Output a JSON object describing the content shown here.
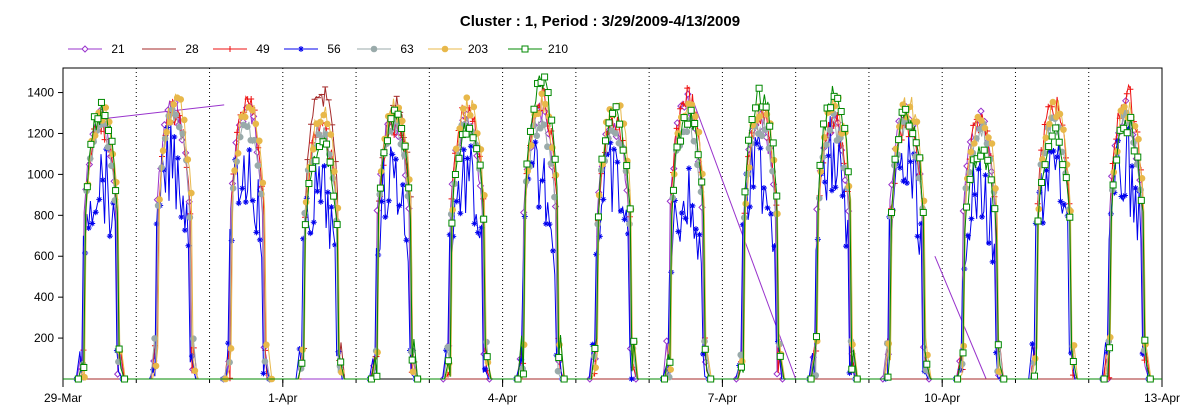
{
  "chart_data": {
    "type": "line",
    "title": "Cluster : 1, Period : 3/29/2009-4/13/2009",
    "xlabel": "",
    "ylabel": "",
    "x_range": [
      "29-Mar",
      "13-Apr"
    ],
    "x_ticks": [
      "29-Mar",
      "1-Apr",
      "4-Apr",
      "7-Apr",
      "10-Apr",
      "13-Apr"
    ],
    "ylim": [
      0,
      1520
    ],
    "y_ticks": [
      200,
      400,
      600,
      800,
      1000,
      1200,
      1400
    ],
    "grid": "vertical dotted at each day",
    "legend_position": "top",
    "series": [
      {
        "name": "21",
        "color": "#9933cc",
        "marker": "diamond",
        "day_peaks": [
          1320,
          1400,
          1380,
          0,
          1330,
          1300,
          1360,
          1320,
          1400,
          1320,
          1320,
          1380,
          1320,
          0,
          1360
        ],
        "extras": [
          {
            "from": [
              0.5,
              1270
            ],
            "to": [
              2.2,
              1340
            ]
          },
          {
            "from": [
              8.6,
              1360
            ],
            "to": [
              10.0,
              0
            ]
          },
          {
            "from": [
              11.9,
              600
            ],
            "to": [
              12.6,
              0
            ]
          }
        ]
      },
      {
        "name": "28",
        "color": "#a52a2a",
        "marker": "dash",
        "day_peaks": [
          0,
          0,
          0,
          1460,
          1400,
          0,
          0,
          0,
          0,
          0,
          0,
          0,
          0,
          0,
          0
        ]
      },
      {
        "name": "49",
        "color": "#ee1111",
        "marker": "plus",
        "day_peaks": [
          1300,
          1360,
          1400,
          1300,
          1310,
          1380,
          1440,
          1300,
          1450,
          1360,
          1320,
          1300,
          1320,
          1400,
          1450
        ]
      },
      {
        "name": "56",
        "color": "#0000ee",
        "marker": "star",
        "day_peaks": [
          1200,
          1280,
          1250,
          1100,
          1200,
          1180,
          1200,
          1180,
          1050,
          1250,
          1300,
          1250,
          1100,
          1250,
          1250
        ]
      },
      {
        "name": "63",
        "color": "#99aaaa",
        "marker": "circle",
        "day_peaks": [
          1280,
          1340,
          1300,
          1280,
          1290,
          1300,
          1320,
          1280,
          1300,
          1300,
          1300,
          1310,
          1280,
          1300,
          1330
        ]
      },
      {
        "name": "203",
        "color": "#e8b84a",
        "marker": "circle",
        "day_peaks": [
          1350,
          1420,
          1400,
          1350,
          1380,
          1400,
          1400,
          1400,
          1430,
          1380,
          1400,
          1400,
          1340,
          1400,
          1400
        ]
      },
      {
        "name": "210",
        "color": "#008800",
        "marker": "square",
        "day_peaks": [
          1370,
          0,
          0,
          1200,
          1330,
          1300,
          1500,
          1350,
          1350,
          1450,
          1460,
          1350,
          1150,
          1250,
          1300
        ]
      }
    ]
  }
}
